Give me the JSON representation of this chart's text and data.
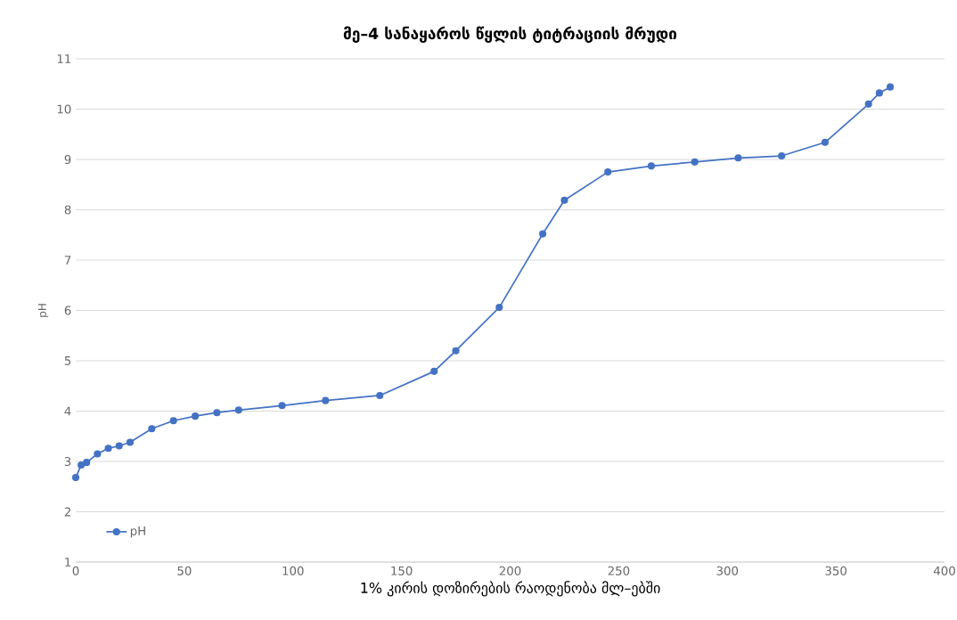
{
  "chart_data": {
    "type": "line",
    "title": "მე–4 სანაყაროს წყლის ტიტრაციის მრუდი",
    "xlabel": "1% კირის დოზირების რაოდენობა მლ–ებში",
    "ylabel": "pH",
    "x": [
      0,
      2.5,
      5,
      10,
      15,
      20,
      25,
      35,
      45,
      55,
      65,
      75,
      95,
      115,
      140,
      165,
      175,
      195,
      215,
      225,
      245,
      265,
      285,
      305,
      325,
      345,
      365,
      370,
      375
    ],
    "series": [
      {
        "name": "pH",
        "color": "#4472c4",
        "values": [
          2.68,
          2.93,
          2.98,
          3.15,
          3.26,
          3.31,
          3.38,
          3.65,
          3.81,
          3.9,
          3.97,
          4.02,
          4.11,
          4.21,
          4.31,
          4.79,
          5.2,
          6.06,
          7.52,
          8.19,
          8.75,
          8.87,
          8.95,
          9.03,
          9.07,
          9.34,
          10.1,
          10.32,
          10.44
        ]
      }
    ],
    "xlim": [
      0,
      400
    ],
    "ylim": [
      1,
      11
    ],
    "xticks": [
      0,
      50,
      100,
      150,
      200,
      250,
      300,
      350,
      400
    ],
    "yticks": [
      1,
      2,
      3,
      4,
      5,
      6,
      7,
      8,
      9,
      10,
      11
    ],
    "grid": "y",
    "legend": "bottom left",
    "marker": "circle",
    "line_style": "solid"
  }
}
